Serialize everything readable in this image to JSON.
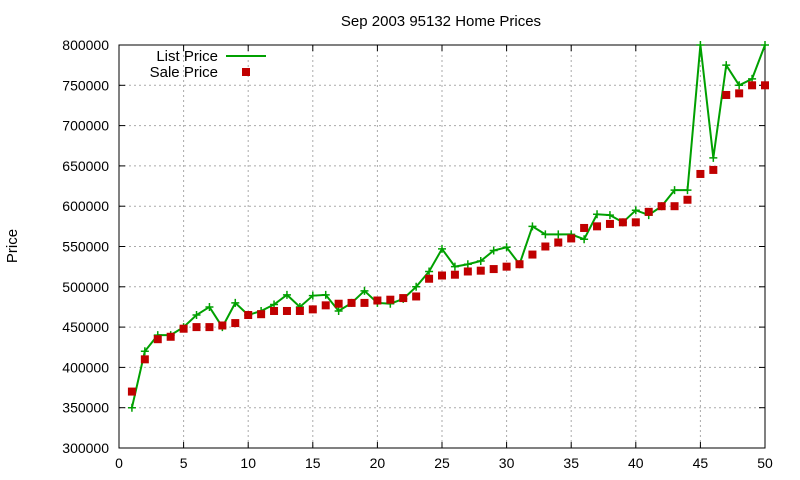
{
  "chart_data": {
    "type": "line",
    "title": "Sep 2003 95132 Home Prices",
    "xlabel": "",
    "ylabel": "Price",
    "xlim": [
      0,
      50
    ],
    "ylim": [
      300000,
      800000
    ],
    "x_ticks": [
      0,
      5,
      10,
      15,
      20,
      25,
      30,
      35,
      40,
      45,
      50
    ],
    "y_ticks": [
      300000,
      350000,
      400000,
      450000,
      500000,
      550000,
      600000,
      650000,
      700000,
      750000,
      800000
    ],
    "grid": true,
    "legend_position": "top-left",
    "x": [
      1,
      2,
      3,
      4,
      5,
      6,
      7,
      8,
      9,
      10,
      11,
      12,
      13,
      14,
      15,
      16,
      17,
      18,
      19,
      20,
      21,
      22,
      23,
      24,
      25,
      26,
      27,
      28,
      29,
      30,
      31,
      32,
      33,
      34,
      35,
      36,
      37,
      38,
      39,
      40,
      41,
      42,
      43,
      44,
      45,
      46,
      47,
      48,
      49,
      50
    ],
    "series": [
      {
        "name": "List Price",
        "style": "line-points",
        "color": "#00a000",
        "values": [
          350000,
          420000,
          440000,
          440000,
          450000,
          465000,
          475000,
          450000,
          480000,
          465000,
          470000,
          478000,
          490000,
          475000,
          489000,
          490000,
          470000,
          480000,
          495000,
          480000,
          479000,
          485000,
          500000,
          519000,
          547000,
          525000,
          528000,
          532000,
          545000,
          549000,
          528000,
          575000,
          565000,
          565000,
          565000,
          559000,
          590000,
          589000,
          580000,
          595000,
          589000,
          600000,
          620000,
          620000,
          800000,
          660000,
          775000,
          750000,
          758000,
          800000
        ]
      },
      {
        "name": "Sale Price",
        "style": "points",
        "color": "#c00000",
        "values": [
          370000,
          410000,
          435000,
          438000,
          448000,
          450000,
          450000,
          452000,
          455000,
          465000,
          466000,
          470000,
          470000,
          470000,
          472000,
          477000,
          479000,
          480000,
          480000,
          483000,
          484000,
          486000,
          488000,
          510000,
          514000,
          515000,
          519000,
          520000,
          522000,
          525000,
          528000,
          540000,
          550000,
          555000,
          560000,
          573000,
          575000,
          578000,
          580000,
          580000,
          593000,
          600000,
          600000,
          608000,
          640000,
          645000,
          738000,
          740000,
          750000,
          750000
        ]
      }
    ]
  }
}
